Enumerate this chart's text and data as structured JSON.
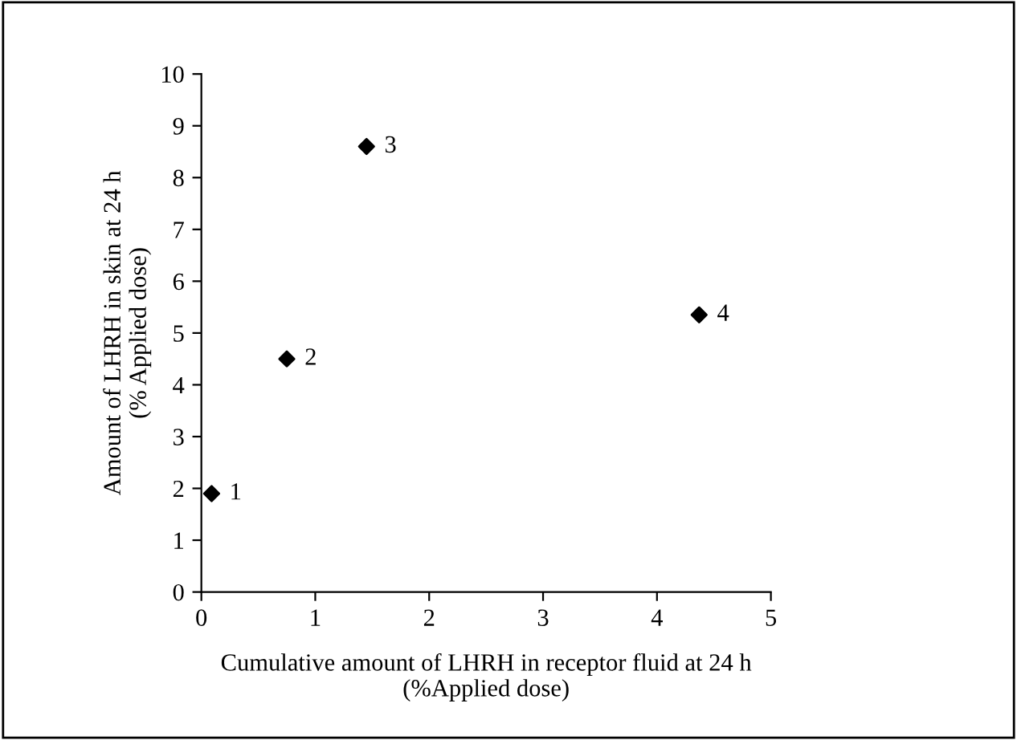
{
  "chart_data": {
    "type": "scatter",
    "xlabel": "Cumulative amount of LHRH in receptor fluid at 24 h\n(%Applied dose)",
    "ylabel": "Amount of LHRH in skin at 24 h\n(% Applied dose)",
    "x": [
      0.09,
      0.75,
      1.45,
      4.37
    ],
    "values": [
      1.9,
      4.5,
      8.6,
      5.35
    ],
    "annotations": [
      {
        "text": "1",
        "x": 0.09,
        "y": 1.9
      },
      {
        "text": "2",
        "x": 0.75,
        "y": 4.5
      },
      {
        "text": "3",
        "x": 1.45,
        "y": 8.6
      },
      {
        "text": "4",
        "x": 4.37,
        "y": 5.35
      }
    ],
    "color": "#000000",
    "marker": "diamond",
    "xlim": [
      0,
      5
    ],
    "xticks": [
      0,
      1,
      2,
      3,
      4,
      5
    ],
    "ylim": [
      0,
      10
    ],
    "yticks": [
      0,
      1,
      2,
      3,
      4,
      5,
      6,
      7,
      8,
      9,
      10
    ],
    "grid": false,
    "legend": false
  }
}
